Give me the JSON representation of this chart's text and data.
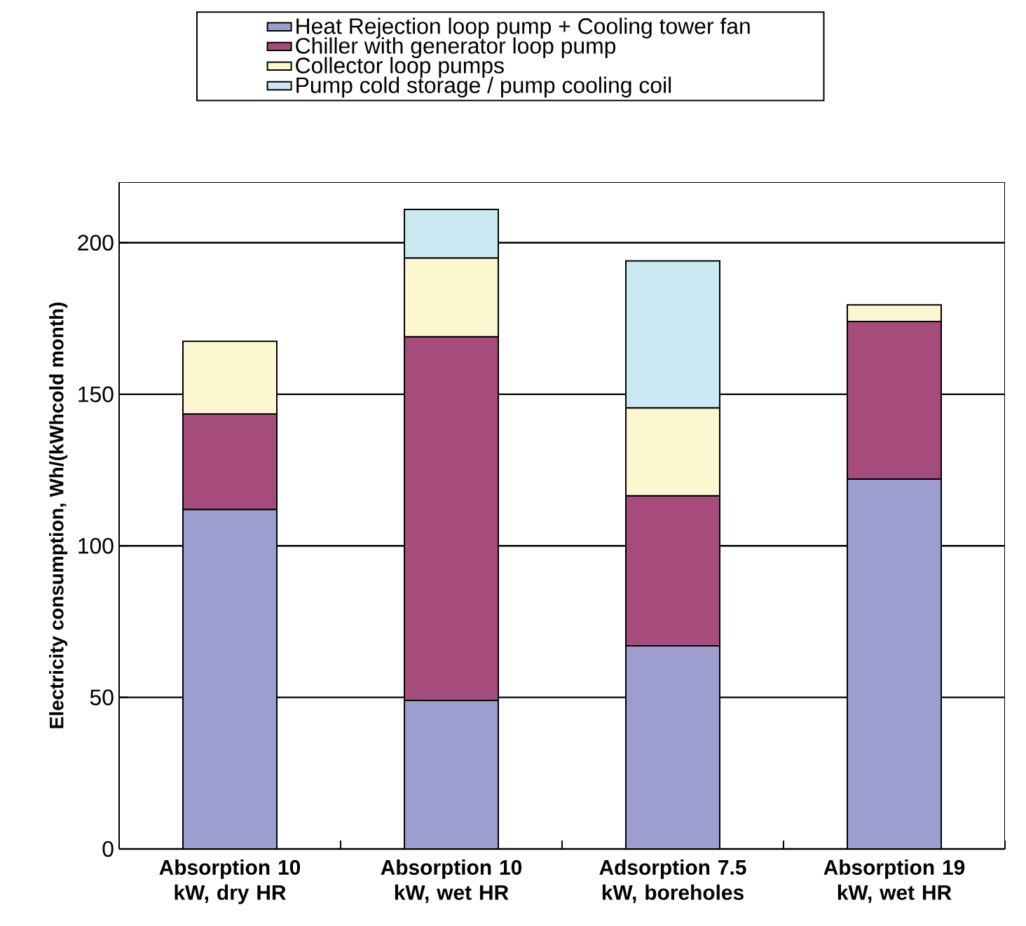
{
  "chart_data": {
    "type": "bar",
    "stacked": true,
    "ylabel": "Electricity consumption, Wh/(kWhcold month)",
    "categories": [
      "Absorption 10 kW, dry HR",
      "Absorption 10 kW, wet HR",
      "Adsorption 7.5 kW, boreholes",
      "Absorption 19 kW, wet HR"
    ],
    "series": [
      {
        "name": "Heat Rejection loop pump + Cooling tower fan",
        "color": "#9c9ecf",
        "values": [
          112,
          49,
          67,
          122
        ]
      },
      {
        "name": "Chiller with generator loop pump",
        "color": "#a64c7c",
        "values": [
          31.5,
          120,
          49.5,
          52
        ]
      },
      {
        "name": "Collector loop pumps",
        "color": "#faf7d0",
        "values": [
          24,
          26,
          29,
          5.5
        ]
      },
      {
        "name": "Pump cold storage / pump cooling coil",
        "color": "#cce9f3",
        "values": [
          null,
          16,
          48.5,
          null
        ]
      }
    ],
    "ylim": [
      0,
      220
    ],
    "yticks": [
      0,
      50,
      100,
      150,
      200
    ],
    "grid": "y",
    "legend": "top"
  }
}
